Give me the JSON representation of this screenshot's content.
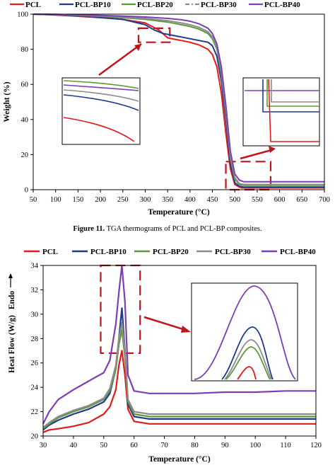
{
  "caption": {
    "label": "Figure 11.",
    "text": " TGA thermograms of PCL and PCL-BP composites."
  },
  "colors": {
    "PCL": "#e31a1c",
    "PCL-BP10": "#1f3a8a",
    "PCL-BP20": "#5b9a3a",
    "PCL-BP30": "#8c8c8c",
    "PCL-BP40": "#7b3fb5",
    "annotation": "#c0141c"
  },
  "chart_data": [
    {
      "type": "line",
      "title": "",
      "xlabel": "Temperature (°C)",
      "ylabel": "Weight (%)",
      "xlim": [
        50,
        700
      ],
      "ylim": [
        0,
        100
      ],
      "xticks": [
        "50",
        "100",
        "150",
        "200",
        "250",
        "300",
        "350",
        "400",
        "450",
        "500",
        "550",
        "600",
        "650",
        "700"
      ],
      "yticks": [
        "0",
        "20",
        "40",
        "60",
        "80",
        "100"
      ],
      "legend": "top",
      "series": [
        {
          "name": "PCL",
          "x": [
            50,
            100,
            150,
            200,
            250,
            300,
            330,
            350,
            380,
            400,
            420,
            440,
            450,
            460,
            470,
            480,
            490,
            500,
            510,
            515,
            520,
            530,
            600,
            700
          ],
          "y": [
            100,
            99.5,
            98.8,
            98,
            97,
            95,
            91,
            86.5,
            85,
            84,
            82.5,
            80,
            77,
            70,
            55,
            32,
            12,
            3,
            1.5,
            1,
            1,
            1,
            1,
            1
          ]
        },
        {
          "name": "PCL-BP10",
          "x": [
            50,
            100,
            150,
            200,
            250,
            300,
            320,
            340,
            350,
            380,
            400,
            420,
            440,
            450,
            460,
            470,
            480,
            490,
            500,
            510,
            520,
            530,
            600,
            700
          ],
          "y": [
            100,
            99.6,
            99,
            98.2,
            97,
            94,
            91,
            89,
            88.5,
            87,
            86,
            85,
            84,
            82,
            76,
            62,
            40,
            15,
            4,
            2,
            1.5,
            1.5,
            1.5,
            1.5
          ]
        },
        {
          "name": "PCL-BP20",
          "x": [
            50,
            100,
            150,
            200,
            250,
            300,
            350,
            380,
            400,
            420,
            440,
            450,
            460,
            470,
            480,
            490,
            500,
            510,
            520,
            530,
            600,
            700
          ],
          "y": [
            100,
            99.8,
            99.3,
            98.8,
            98,
            97,
            95.5,
            94,
            93,
            91.5,
            89,
            86,
            80,
            66,
            44,
            18,
            6,
            3,
            2.5,
            2.5,
            2.5,
            2.5
          ]
        },
        {
          "name": "PCL-BP30",
          "x": [
            50,
            100,
            150,
            200,
            250,
            300,
            350,
            380,
            400,
            420,
            440,
            450,
            460,
            470,
            480,
            490,
            500,
            510,
            520,
            530,
            600,
            700
          ],
          "y": [
            100,
            99.8,
            99.4,
            99,
            98.4,
            97.6,
            96.3,
            95,
            94,
            92.5,
            90,
            87,
            81,
            67,
            45,
            19,
            7,
            3.5,
            3,
            3,
            3,
            3
          ]
        },
        {
          "name": "PCL-BP40",
          "x": [
            50,
            100,
            150,
            200,
            250,
            300,
            350,
            380,
            400,
            420,
            440,
            450,
            460,
            470,
            480,
            490,
            500,
            510,
            520,
            530,
            600,
            700
          ],
          "y": [
            100,
            99.9,
            99.6,
            99.3,
            98.9,
            98.4,
            97.6,
            96.8,
            96,
            94.5,
            92,
            89,
            83,
            70,
            48,
            22,
            9,
            5.5,
            4.5,
            4.5,
            4.5,
            4.5
          ]
        }
      ]
    },
    {
      "type": "line",
      "title": "",
      "xlabel": "Temperature (°C)",
      "ylabel": "Heat Flow (W/g)",
      "ylabel_extra": "Endo",
      "xlim": [
        30,
        120
      ],
      "ylim": [
        20,
        34
      ],
      "xticks": [
        "30",
        "40",
        "50",
        "60",
        "70",
        "80",
        "90",
        "100",
        "110",
        "120"
      ],
      "yticks": [
        "20",
        "22",
        "24",
        "26",
        "28",
        "30",
        "32",
        "34"
      ],
      "legend": "top",
      "series": [
        {
          "name": "PCL",
          "x": [
            30,
            32,
            35,
            40,
            45,
            50,
            52,
            54,
            55,
            56,
            57,
            58,
            60,
            65,
            70,
            80,
            90,
            100,
            110,
            120
          ],
          "y": [
            20.3,
            20.5,
            20.6,
            20.8,
            21.1,
            21.8,
            22.4,
            23.8,
            25.8,
            27,
            25,
            22.2,
            21.2,
            21,
            21,
            21,
            21,
            21,
            21,
            21
          ]
        },
        {
          "name": "PCL-BP10",
          "x": [
            30,
            32,
            35,
            40,
            45,
            50,
            52,
            54,
            55,
            56,
            57,
            58,
            60,
            65,
            70,
            80,
            90,
            100,
            110,
            120
          ],
          "y": [
            20.5,
            20.9,
            21.3,
            21.8,
            22.2,
            22.8,
            23.5,
            25.5,
            28,
            30.5,
            27,
            22.6,
            21.6,
            21.4,
            21.4,
            21.4,
            21.4,
            21.4,
            21.4,
            21.4
          ]
        },
        {
          "name": "PCL-BP20",
          "x": [
            30,
            32,
            35,
            40,
            45,
            50,
            52,
            54,
            55,
            56,
            57,
            58,
            60,
            65,
            70,
            80,
            90,
            100,
            110,
            120
          ],
          "y": [
            20.6,
            21,
            21.5,
            22,
            22.4,
            23,
            23.7,
            25.5,
            27.5,
            28.7,
            26.5,
            22.8,
            21.8,
            21.6,
            21.6,
            21.6,
            21.6,
            21.6,
            21.6,
            21.6
          ]
        },
        {
          "name": "PCL-BP30",
          "x": [
            30,
            32,
            35,
            40,
            45,
            50,
            52,
            54,
            55,
            56,
            57,
            58,
            60,
            65,
            70,
            80,
            90,
            100,
            110,
            120
          ],
          "y": [
            20.7,
            21.1,
            21.6,
            22.1,
            22.5,
            23.1,
            23.9,
            25.8,
            28,
            29.3,
            27,
            23,
            22,
            21.8,
            21.8,
            21.8,
            21.8,
            21.8,
            21.8,
            21.8
          ]
        },
        {
          "name": "PCL-BP40",
          "x": [
            30,
            32,
            35,
            40,
            45,
            50,
            52,
            54,
            55,
            56,
            57,
            58,
            60,
            65,
            70,
            80,
            90,
            100,
            110,
            120
          ],
          "y": [
            21,
            22,
            23,
            23.8,
            24.5,
            25.2,
            26.2,
            29.2,
            31.8,
            34,
            31,
            25,
            23.7,
            23.5,
            23.5,
            23.5,
            23.6,
            23.6,
            23.7,
            23.7
          ]
        }
      ]
    }
  ]
}
